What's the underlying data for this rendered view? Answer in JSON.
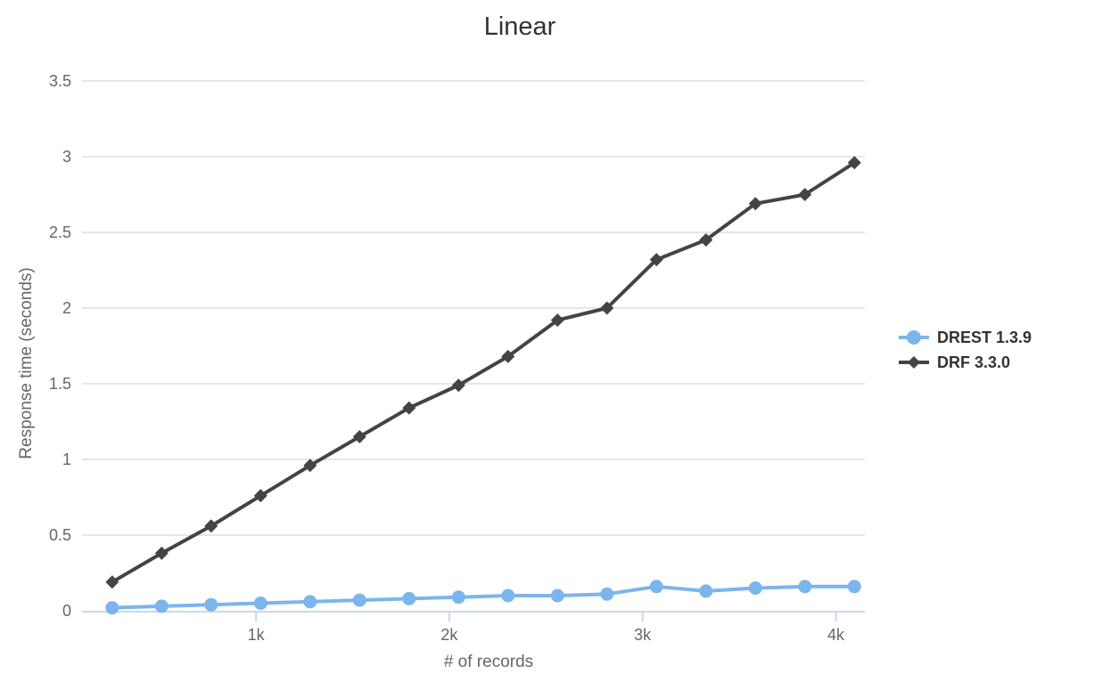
{
  "chart_data": {
    "type": "line",
    "title": "Linear",
    "xlabel": "# of records",
    "ylabel": "Response time (seconds)",
    "xlim": [
      100,
      4150
    ],
    "ylim": [
      0,
      3.5
    ],
    "grid": true,
    "legend_position": "right",
    "colors": {
      "gridline": "#e6e6e6",
      "axis_line": "#ccd6eb",
      "title_text": "#333333",
      "axis_text": "#666666",
      "legend_text": "#333333",
      "background": "#ffffff"
    },
    "x": [
      256,
      512,
      768,
      1024,
      1280,
      1536,
      1792,
      2048,
      2304,
      2560,
      2816,
      3072,
      3328,
      3584,
      3840,
      4096
    ],
    "xticks": [
      {
        "value": 1000,
        "label": "1k"
      },
      {
        "value": 2000,
        "label": "2k"
      },
      {
        "value": 3000,
        "label": "3k"
      },
      {
        "value": 4000,
        "label": "4k"
      }
    ],
    "yticks": [
      0,
      0.5,
      1,
      1.5,
      2,
      2.5,
      3,
      3.5
    ],
    "series": [
      {
        "name": "DREST 1.3.9",
        "color": "#7cb5ec",
        "marker": "circle",
        "values": [
          0.02,
          0.03,
          0.04,
          0.05,
          0.06,
          0.07,
          0.08,
          0.09,
          0.1,
          0.1,
          0.11,
          0.16,
          0.13,
          0.15,
          0.16,
          0.16
        ]
      },
      {
        "name": "DRF 3.3.0",
        "color": "#434348",
        "marker": "diamond",
        "values": [
          0.19,
          0.38,
          0.56,
          0.76,
          0.96,
          1.15,
          1.34,
          1.49,
          1.68,
          1.92,
          2.0,
          2.32,
          2.45,
          2.69,
          2.75,
          2.96
        ]
      }
    ]
  }
}
